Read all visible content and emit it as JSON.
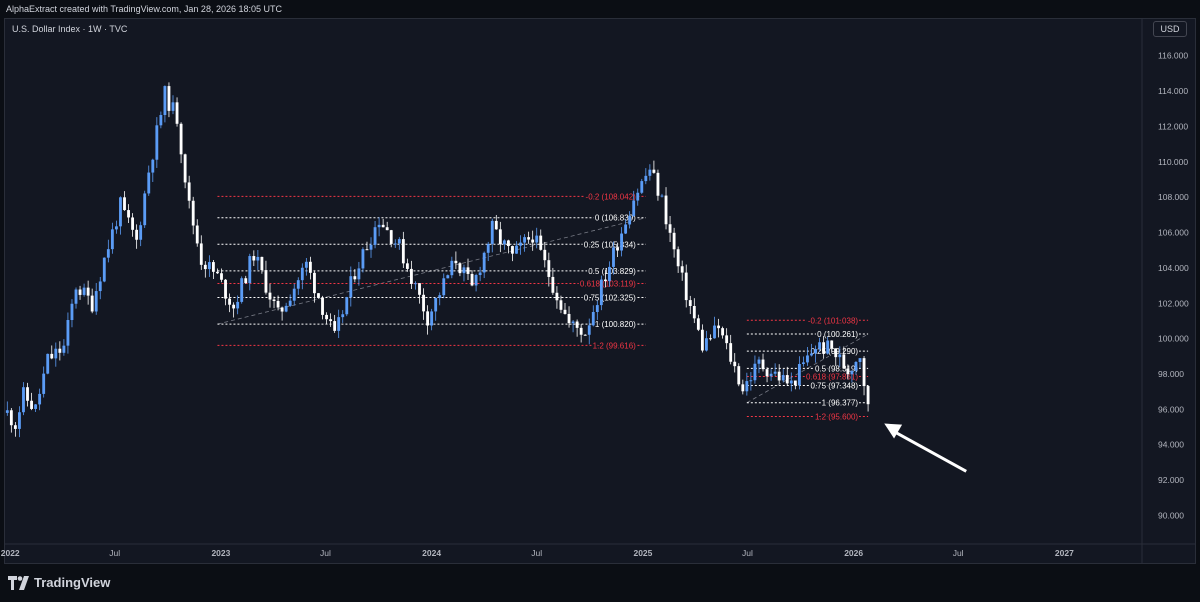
{
  "header": {
    "attribution": "AlphaExtract created with TradingView.com, Jan 28, 2026 18:05 UTC"
  },
  "chart_header": {
    "symbol": "U.S. Dollar Index · 1W · TVC",
    "currency": "USD"
  },
  "footer": {
    "brand": "TradingView"
  },
  "colors": {
    "up": "#5b9cf6",
    "down": "#ffffff",
    "background": "#131722",
    "fib_white": "#ffffff",
    "fib_red": "#f23645",
    "grid": "#2a2e39",
    "axis_text": "#b2b5be"
  },
  "chart_data": {
    "type": "candlestick",
    "title": "U.S. Dollar Index",
    "interval": "1W",
    "ylim": [
      88.5,
      117
    ],
    "yticks": [
      90,
      92,
      94,
      96,
      98,
      100,
      102,
      104,
      106,
      108,
      110,
      112,
      114,
      116
    ],
    "ytick_labels": [
      "90.000",
      "92.000",
      "94.000",
      "96.000",
      "98.000",
      "100.000",
      "102.000",
      "104.000",
      "106.000",
      "108.000",
      "110.000",
      "112.000",
      "114.000",
      "116.000"
    ],
    "xlim": [
      "2021-12-23",
      "2027-05-12"
    ],
    "xticks": [
      {
        "date": "2022-01-01",
        "label": "2022",
        "bold": true
      },
      {
        "date": "2022-07-01",
        "label": "Jul",
        "bold": false
      },
      {
        "date": "2023-01-01",
        "label": "2023",
        "bold": true
      },
      {
        "date": "2023-07-01",
        "label": "Jul",
        "bold": false
      },
      {
        "date": "2024-01-01",
        "label": "2024",
        "bold": true
      },
      {
        "date": "2024-07-01",
        "label": "Jul",
        "bold": false
      },
      {
        "date": "2025-01-01",
        "label": "2025",
        "bold": true
      },
      {
        "date": "2025-07-01",
        "label": "Jul",
        "bold": false
      },
      {
        "date": "2026-01-01",
        "label": "2026",
        "bold": true
      },
      {
        "date": "2026-07-01",
        "label": "Jul",
        "bold": false
      },
      {
        "date": "2027-01-01",
        "label": "2027",
        "bold": true
      }
    ],
    "price_path": [
      {
        "date": "2021-12-27",
        "price": 95.8
      },
      {
        "date": "2022-01-10",
        "price": 95.2
      },
      {
        "date": "2022-01-24",
        "price": 96.8
      },
      {
        "date": "2022-02-14",
        "price": 96.0
      },
      {
        "date": "2022-03-07",
        "price": 98.8
      },
      {
        "date": "2022-04-04",
        "price": 99.5
      },
      {
        "date": "2022-04-25",
        "price": 103.0
      },
      {
        "date": "2022-05-23",
        "price": 102.0
      },
      {
        "date": "2022-06-13",
        "price": 104.5
      },
      {
        "date": "2022-07-11",
        "price": 107.5
      },
      {
        "date": "2022-08-08",
        "price": 105.5
      },
      {
        "date": "2022-08-29",
        "price": 109.5
      },
      {
        "date": "2022-09-26",
        "price": 113.8
      },
      {
        "date": "2022-10-17",
        "price": 112.5
      },
      {
        "date": "2022-11-07",
        "price": 107.5
      },
      {
        "date": "2022-11-28",
        "price": 104.5
      },
      {
        "date": "2022-12-26",
        "price": 103.5
      },
      {
        "date": "2023-01-23",
        "price": 101.8
      },
      {
        "date": "2023-02-27",
        "price": 104.8
      },
      {
        "date": "2023-04-10",
        "price": 101.3
      },
      {
        "date": "2023-05-29",
        "price": 104.2
      },
      {
        "date": "2023-07-17",
        "price": 100.0
      },
      {
        "date": "2023-08-21",
        "price": 103.8
      },
      {
        "date": "2023-10-02",
        "price": 106.8
      },
      {
        "date": "2023-11-06",
        "price": 105.2
      },
      {
        "date": "2023-12-25",
        "price": 101.2
      },
      {
        "date": "2024-02-12",
        "price": 104.5
      },
      {
        "date": "2024-03-11",
        "price": 102.8
      },
      {
        "date": "2024-04-15",
        "price": 106.2
      },
      {
        "date": "2024-05-20",
        "price": 104.6
      },
      {
        "date": "2024-06-24",
        "price": 105.9
      },
      {
        "date": "2024-08-26",
        "price": 100.8
      },
      {
        "date": "2024-09-23",
        "price": 100.4
      },
      {
        "date": "2024-11-04",
        "price": 104.2
      },
      {
        "date": "2024-12-16",
        "price": 108.0
      },
      {
        "date": "2025-01-13",
        "price": 109.6
      },
      {
        "date": "2025-02-03",
        "price": 107.8
      },
      {
        "date": "2025-03-03",
        "price": 104.0
      },
      {
        "date": "2025-04-14",
        "price": 99.6
      },
      {
        "date": "2025-05-12",
        "price": 100.6
      },
      {
        "date": "2025-06-23",
        "price": 97.2
      },
      {
        "date": "2025-07-21",
        "price": 98.6
      },
      {
        "date": "2025-09-15",
        "price": 97.4
      },
      {
        "date": "2025-10-27",
        "price": 99.6
      },
      {
        "date": "2025-11-24",
        "price": 99.4
      },
      {
        "date": "2025-12-22",
        "price": 98.2
      },
      {
        "date": "2026-01-12",
        "price": 99.2
      },
      {
        "date": "2026-01-19",
        "price": 97.6
      },
      {
        "date": "2026-01-26",
        "price": 96.0
      }
    ],
    "fib_retracements": [
      {
        "start": "2022-12-26",
        "end": "2025-01-06",
        "anchor_from": 100.82,
        "anchor_to": 106.839,
        "levels": [
          {
            "label": "-0.2 (108.042)",
            "price": 108.042,
            "color": "red"
          },
          {
            "label": "0 (106.839)",
            "price": 106.839,
            "color": "white"
          },
          {
            "label": "0.25 (105.334)",
            "price": 105.334,
            "color": "white"
          },
          {
            "label": "0.5 (103.829)",
            "price": 103.829,
            "color": "white"
          },
          {
            "label": "0.618 (103.119)",
            "price": 103.119,
            "color": "red"
          },
          {
            "label": "0.75 (102.325)",
            "price": 102.325,
            "color": "white"
          },
          {
            "label": "1 (100.820)",
            "price": 100.82,
            "color": "white"
          },
          {
            "label": "1.2 (99.616)",
            "price": 99.616,
            "color": "red"
          }
        ]
      },
      {
        "start": "2025-06-30",
        "end": "2026-01-26",
        "anchor_from": 96.377,
        "anchor_to": 100.261,
        "levels": [
          {
            "label": "-0.2 (101.038)",
            "price": 101.038,
            "color": "red"
          },
          {
            "label": "0 (100.261)",
            "price": 100.261,
            "color": "white"
          },
          {
            "label": "0.25 (99.290)",
            "price": 99.29,
            "color": "white"
          },
          {
            "label": "0.5 (98.319)",
            "price": 98.319,
            "color": "white"
          },
          {
            "label": "0.618 (97.861)",
            "price": 97.861,
            "color": "red"
          },
          {
            "label": "0.75 (97.348)",
            "price": 97.348,
            "color": "white"
          },
          {
            "label": "1 (96.377)",
            "price": 96.377,
            "color": "white"
          },
          {
            "label": "1.2 (95.600)",
            "price": 95.6,
            "color": "red"
          }
        ]
      }
    ],
    "annotations": [
      {
        "type": "arrow",
        "from": {
          "date": "2026-07-15",
          "price": 92.5
        },
        "to": {
          "date": "2026-02-23",
          "price": 95.2
        },
        "color": "#ffffff"
      }
    ]
  }
}
